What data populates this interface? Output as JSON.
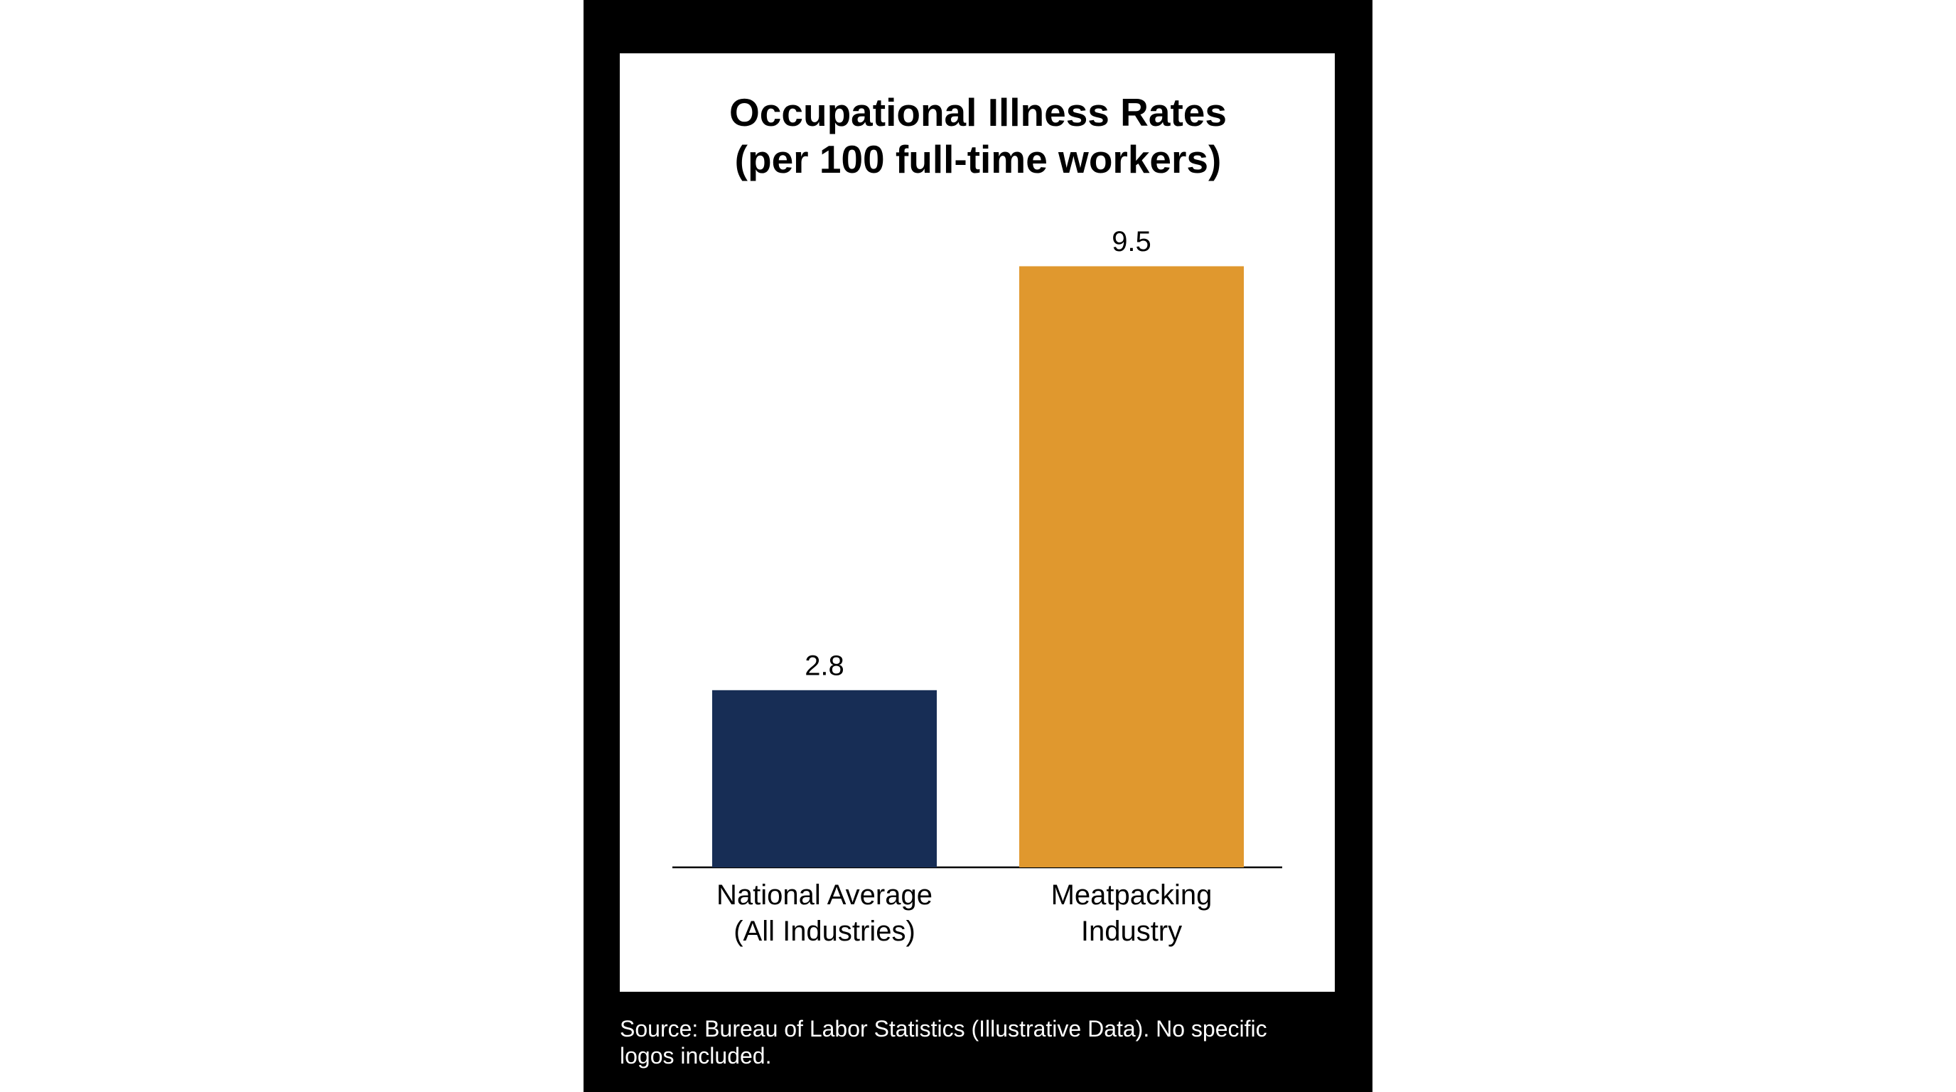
{
  "chart_data": {
    "type": "bar",
    "title": "Occupational Illness Rates\n(per 100 full-time workers)",
    "categories": [
      "National Average\n(All Industries)",
      "Meatpacking\nIndustry"
    ],
    "values": [
      2.8,
      9.5
    ],
    "colors": [
      "#172d55",
      "#e0982e"
    ],
    "source": "Source: Bureau of Labor Statistics (Illustrative Data). No specific\nlogos included."
  }
}
